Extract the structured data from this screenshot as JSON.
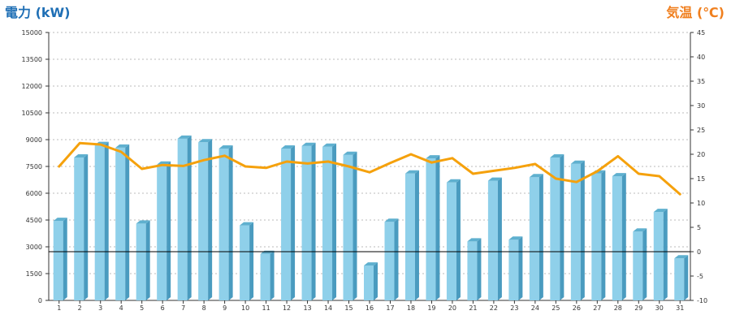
{
  "chart_data": {
    "type": "bar",
    "title": "",
    "left_axis_label": "電力 (kW)",
    "right_axis_label": "気温 (℃)",
    "categories": [
      "1",
      "2",
      "3",
      "4",
      "5",
      "6",
      "7",
      "8",
      "9",
      "10",
      "11",
      "12",
      "13",
      "14",
      "15",
      "16",
      "17",
      "18",
      "19",
      "20",
      "21",
      "22",
      "23",
      "24",
      "25",
      "26",
      "27",
      "28",
      "29",
      "30",
      "31"
    ],
    "series": [
      {
        "type": "bar",
        "axis": "left",
        "color": "#8fd0ea",
        "values": [
          4450,
          8000,
          8700,
          8550,
          4300,
          7600,
          9050,
          8850,
          8500,
          4200,
          2600,
          8500,
          8650,
          8600,
          8150,
          1950,
          4400,
          7100,
          7950,
          6600,
          3300,
          6700,
          3400,
          6900,
          8000,
          7650,
          7100,
          6950,
          3850,
          4950,
          2350
        ]
      },
      {
        "type": "line",
        "axis": "right",
        "color": "#f5a10c",
        "values": [
          17.5,
          22.3,
          22.0,
          20.5,
          17.0,
          17.8,
          17.6,
          18.8,
          19.7,
          17.5,
          17.2,
          18.5,
          18.1,
          18.5,
          17.5,
          16.3,
          18.2,
          20.0,
          18.3,
          19.2,
          16.0,
          16.6,
          17.2,
          18.0,
          15.0,
          14.3,
          16.5,
          19.6,
          16.0,
          15.5,
          11.8
        ]
      }
    ],
    "y_left": {
      "min": 0,
      "max": 15000,
      "ticks": [
        "0",
        "1500",
        "3000",
        "4500",
        "6000",
        "7500",
        "9000",
        "10500",
        "12000",
        "13500",
        "15000"
      ]
    },
    "y_right": {
      "min": -10,
      "max": 45,
      "ticks": [
        "-10",
        "-5",
        "0",
        "5",
        "10",
        "15",
        "20",
        "25",
        "30",
        "35",
        "40",
        "45"
      ]
    },
    "reference_line": {
      "axis": "right",
      "value": 0
    },
    "grid": true,
    "gridline_color": "#bbbbbb",
    "legend": "none"
  }
}
